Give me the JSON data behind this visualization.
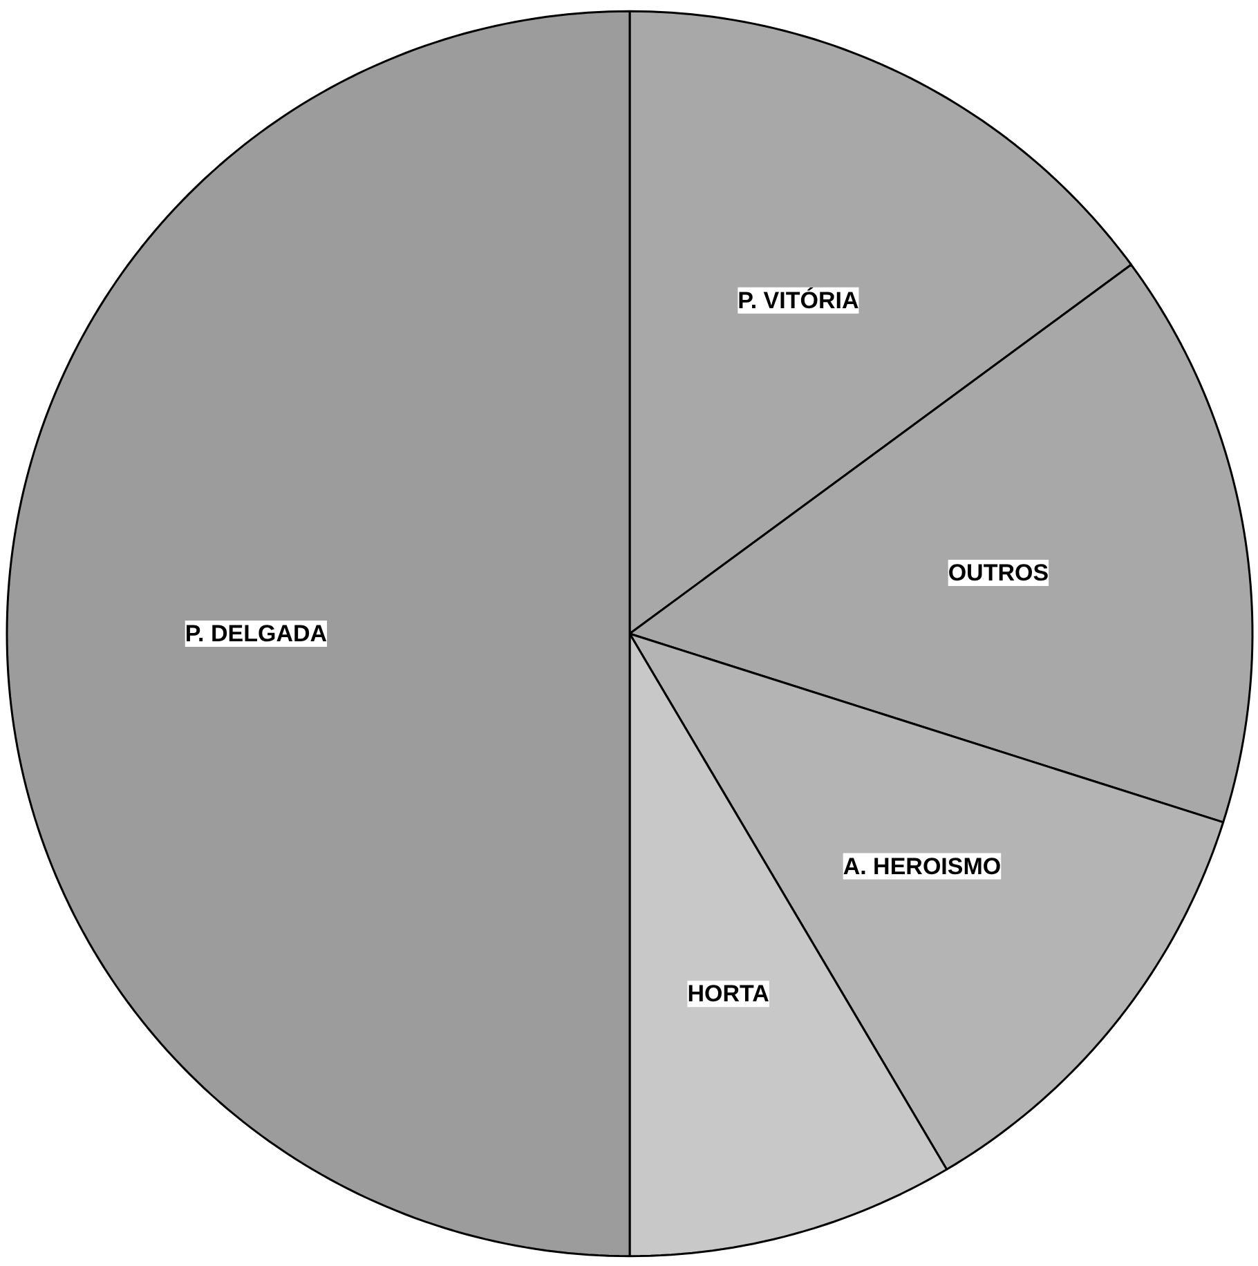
{
  "chart_data": {
    "type": "pie",
    "categories": [
      "P. VITÓRIA",
      "OUTROS",
      "A. HEROISMO",
      "HORTA",
      "P. DELGADA"
    ],
    "values": [
      14.9,
      15,
      11.6,
      8.5,
      50
    ],
    "colors": [
      "#a8a8a8",
      "#a8a8a8",
      "#b4b4b4",
      "#c8c8c8",
      "#9c9c9c"
    ]
  }
}
